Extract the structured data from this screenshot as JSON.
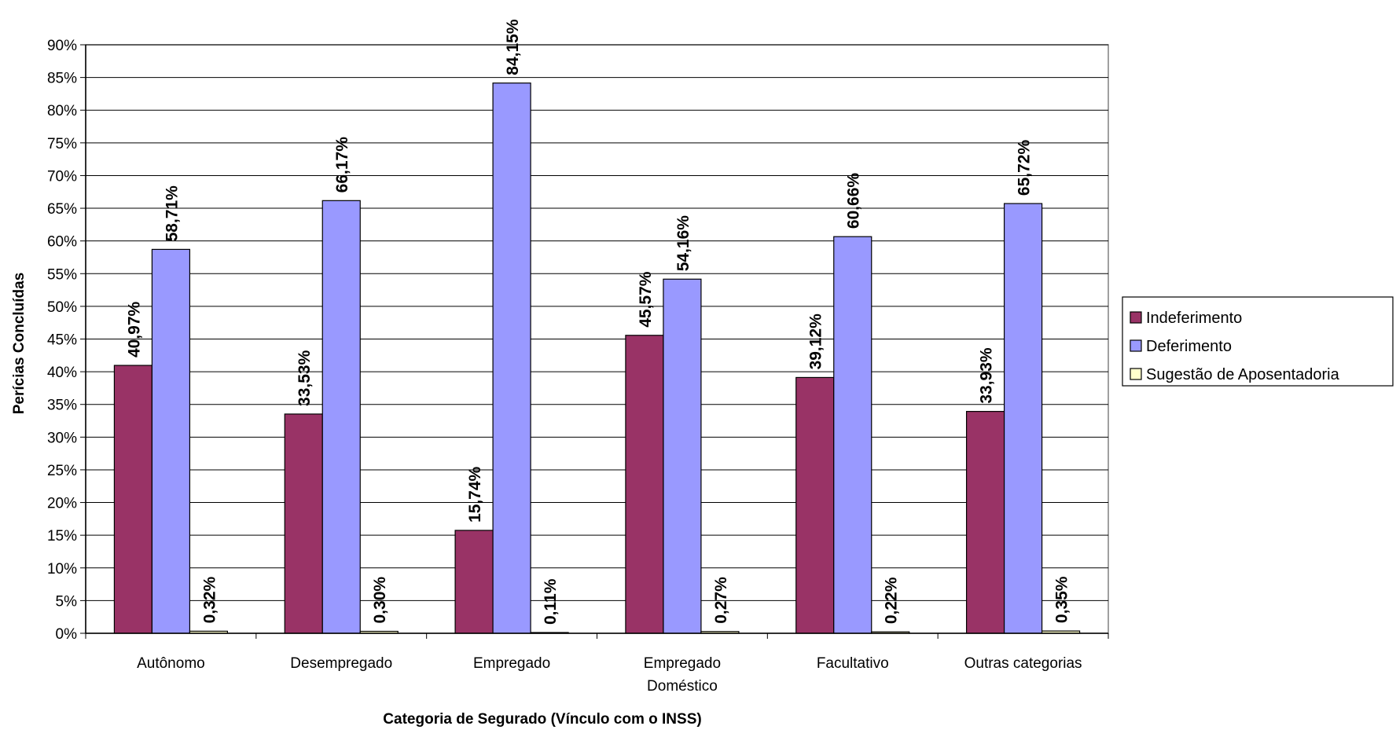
{
  "chart_data": {
    "type": "bar",
    "title": "",
    "xlabel": "Categoria de Segurado (Vínculo com o INSS)",
    "ylabel": "Perícias Concluídas",
    "ylim": [
      0,
      90
    ],
    "ytick_step": 5,
    "y_format": "percent",
    "grid": true,
    "legend_position": "right",
    "categories": [
      [
        "Autônomo"
      ],
      [
        "Desempregado"
      ],
      [
        "Empregado"
      ],
      [
        "Empregado",
        "Doméstico"
      ],
      [
        "Facultativo"
      ],
      [
        "Outras categorias"
      ]
    ],
    "series": [
      {
        "name": "Indeferimento",
        "color": "#993366",
        "values": [
          40.97,
          33.53,
          15.74,
          45.57,
          39.12,
          33.93
        ],
        "labels": [
          "40,97%",
          "33,53%",
          "15,74%",
          "45,57%",
          "39,12%",
          "33,93%"
        ]
      },
      {
        "name": "Deferimento",
        "color": "#9999FF",
        "values": [
          58.71,
          66.17,
          84.15,
          54.16,
          60.66,
          65.72
        ],
        "labels": [
          "58,71%",
          "66,17%",
          "84,15%",
          "54,16%",
          "60,66%",
          "65,72%"
        ]
      },
      {
        "name": "Sugestão de Aposentadoria",
        "color": "#FFFFCC",
        "values": [
          0.32,
          0.3,
          0.11,
          0.27,
          0.22,
          0.35
        ],
        "labels": [
          "0,32%",
          "0,30%",
          "0,11%",
          "0,27%",
          "0,22%",
          "0,35%"
        ]
      }
    ],
    "plot_background": "#ffffff",
    "gridline_color": "#000000"
  }
}
